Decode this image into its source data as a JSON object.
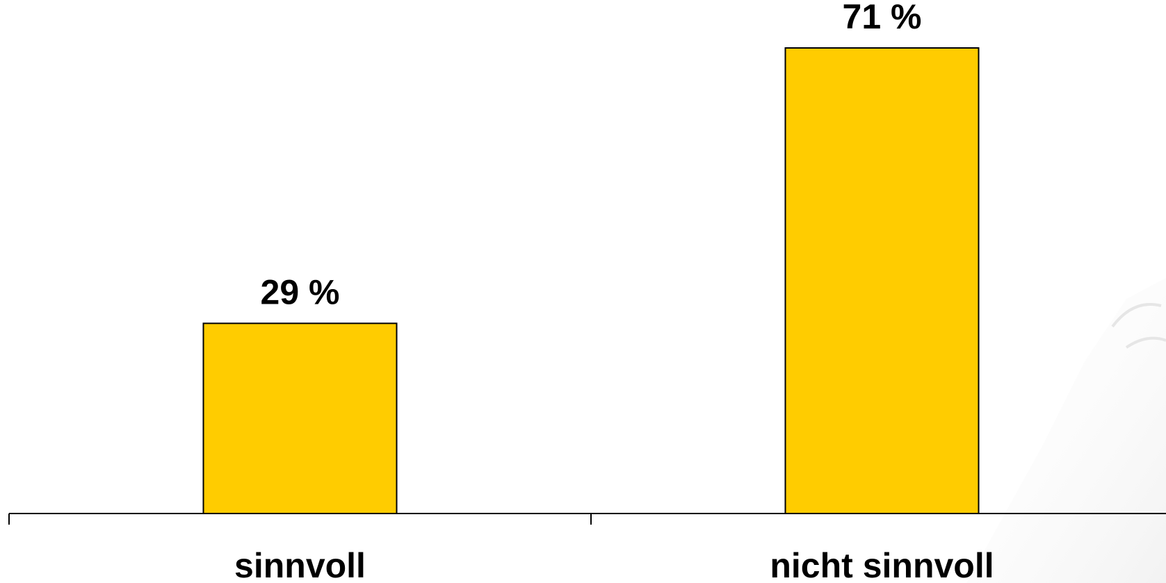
{
  "chart_data": {
    "type": "bar",
    "categories": [
      "sinnvoll",
      "nicht sinnvoll"
    ],
    "values": [
      29,
      71
    ],
    "data_labels": [
      "29 %",
      "71 %"
    ],
    "unit": "%",
    "ylim": [
      0,
      75
    ],
    "grid": false,
    "legend": "none",
    "colors": {
      "bar_fill": "#FFCC00",
      "bar_stroke": "#000000",
      "axis": "#000000",
      "text": "#000000",
      "background": "#FFFFFF"
    }
  }
}
